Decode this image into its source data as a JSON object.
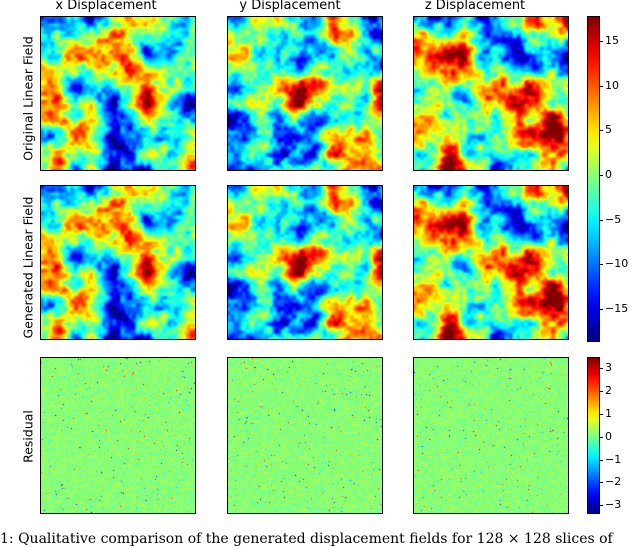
{
  "chart_data": {
    "type": "heatmap",
    "columns": [
      "x Displacement",
      "y Displacement",
      "z Displacement"
    ],
    "rows": [
      "Original Linear Field",
      "Generated Linear Field",
      "Residual"
    ],
    "colormap": "jet",
    "colorbars": [
      {
        "name": "main",
        "range": [
          -18.5,
          17.8
        ],
        "ticks": [
          15,
          10,
          5,
          0,
          -5,
          -10,
          -15
        ],
        "tick_labels": [
          "15",
          "10",
          "5",
          "0",
          "−5",
          "−10",
          "−15"
        ]
      },
      {
        "name": "residual",
        "range": [
          -3.3,
          3.5
        ],
        "ticks": [
          3,
          2,
          1,
          0,
          -1,
          -2,
          -3
        ],
        "tick_labels": [
          "3",
          "2",
          "1",
          "0",
          "−1",
          "−2",
          "−3"
        ]
      }
    ]
  },
  "caption": "1: Qualitative comparison of the generated displacement fields for 128 × 128 slices of"
}
